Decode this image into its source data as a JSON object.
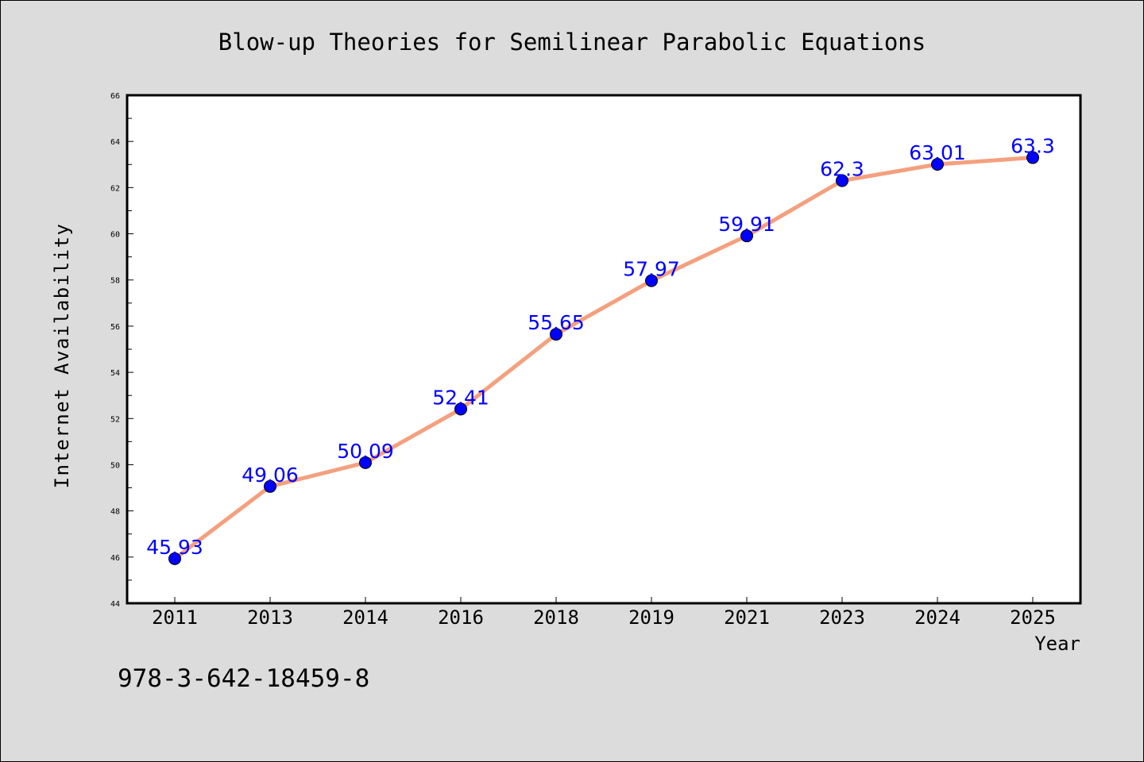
{
  "chart_data": {
    "type": "line",
    "title": "Blow-up Theories for Semilinear Parabolic Equations",
    "xlabel": "Year",
    "ylabel": "Internet Availability",
    "categories": [
      "2011",
      "2013",
      "2014",
      "2016",
      "2018",
      "2019",
      "2021",
      "2023",
      "2024",
      "2025"
    ],
    "series": [
      {
        "values": [
          45.93,
          49.06,
          50.09,
          52.41,
          55.65,
          57.97,
          59.91,
          62.3,
          63.01,
          63.3
        ],
        "data_labels": [
          "45.93",
          "49.06",
          "50.09",
          "52.41",
          "55.65",
          "57.97",
          "59.91",
          "62.3",
          "63.01",
          "63.3"
        ],
        "line_color": "#f4a07e",
        "marker_color": "#0000ff"
      }
    ],
    "ylim": [
      44,
      66
    ],
    "yticks": [
      "44",
      "46",
      "48",
      "50",
      "52",
      "54",
      "56",
      "58",
      "60",
      "62",
      "64",
      "66"
    ],
    "grid": false,
    "annotation": "978-3-642-18459-8",
    "colors": {
      "background": "#dcdcdc",
      "plot_area": "#ffffff",
      "label_text": "#0000ff",
      "text": "#000000"
    }
  }
}
